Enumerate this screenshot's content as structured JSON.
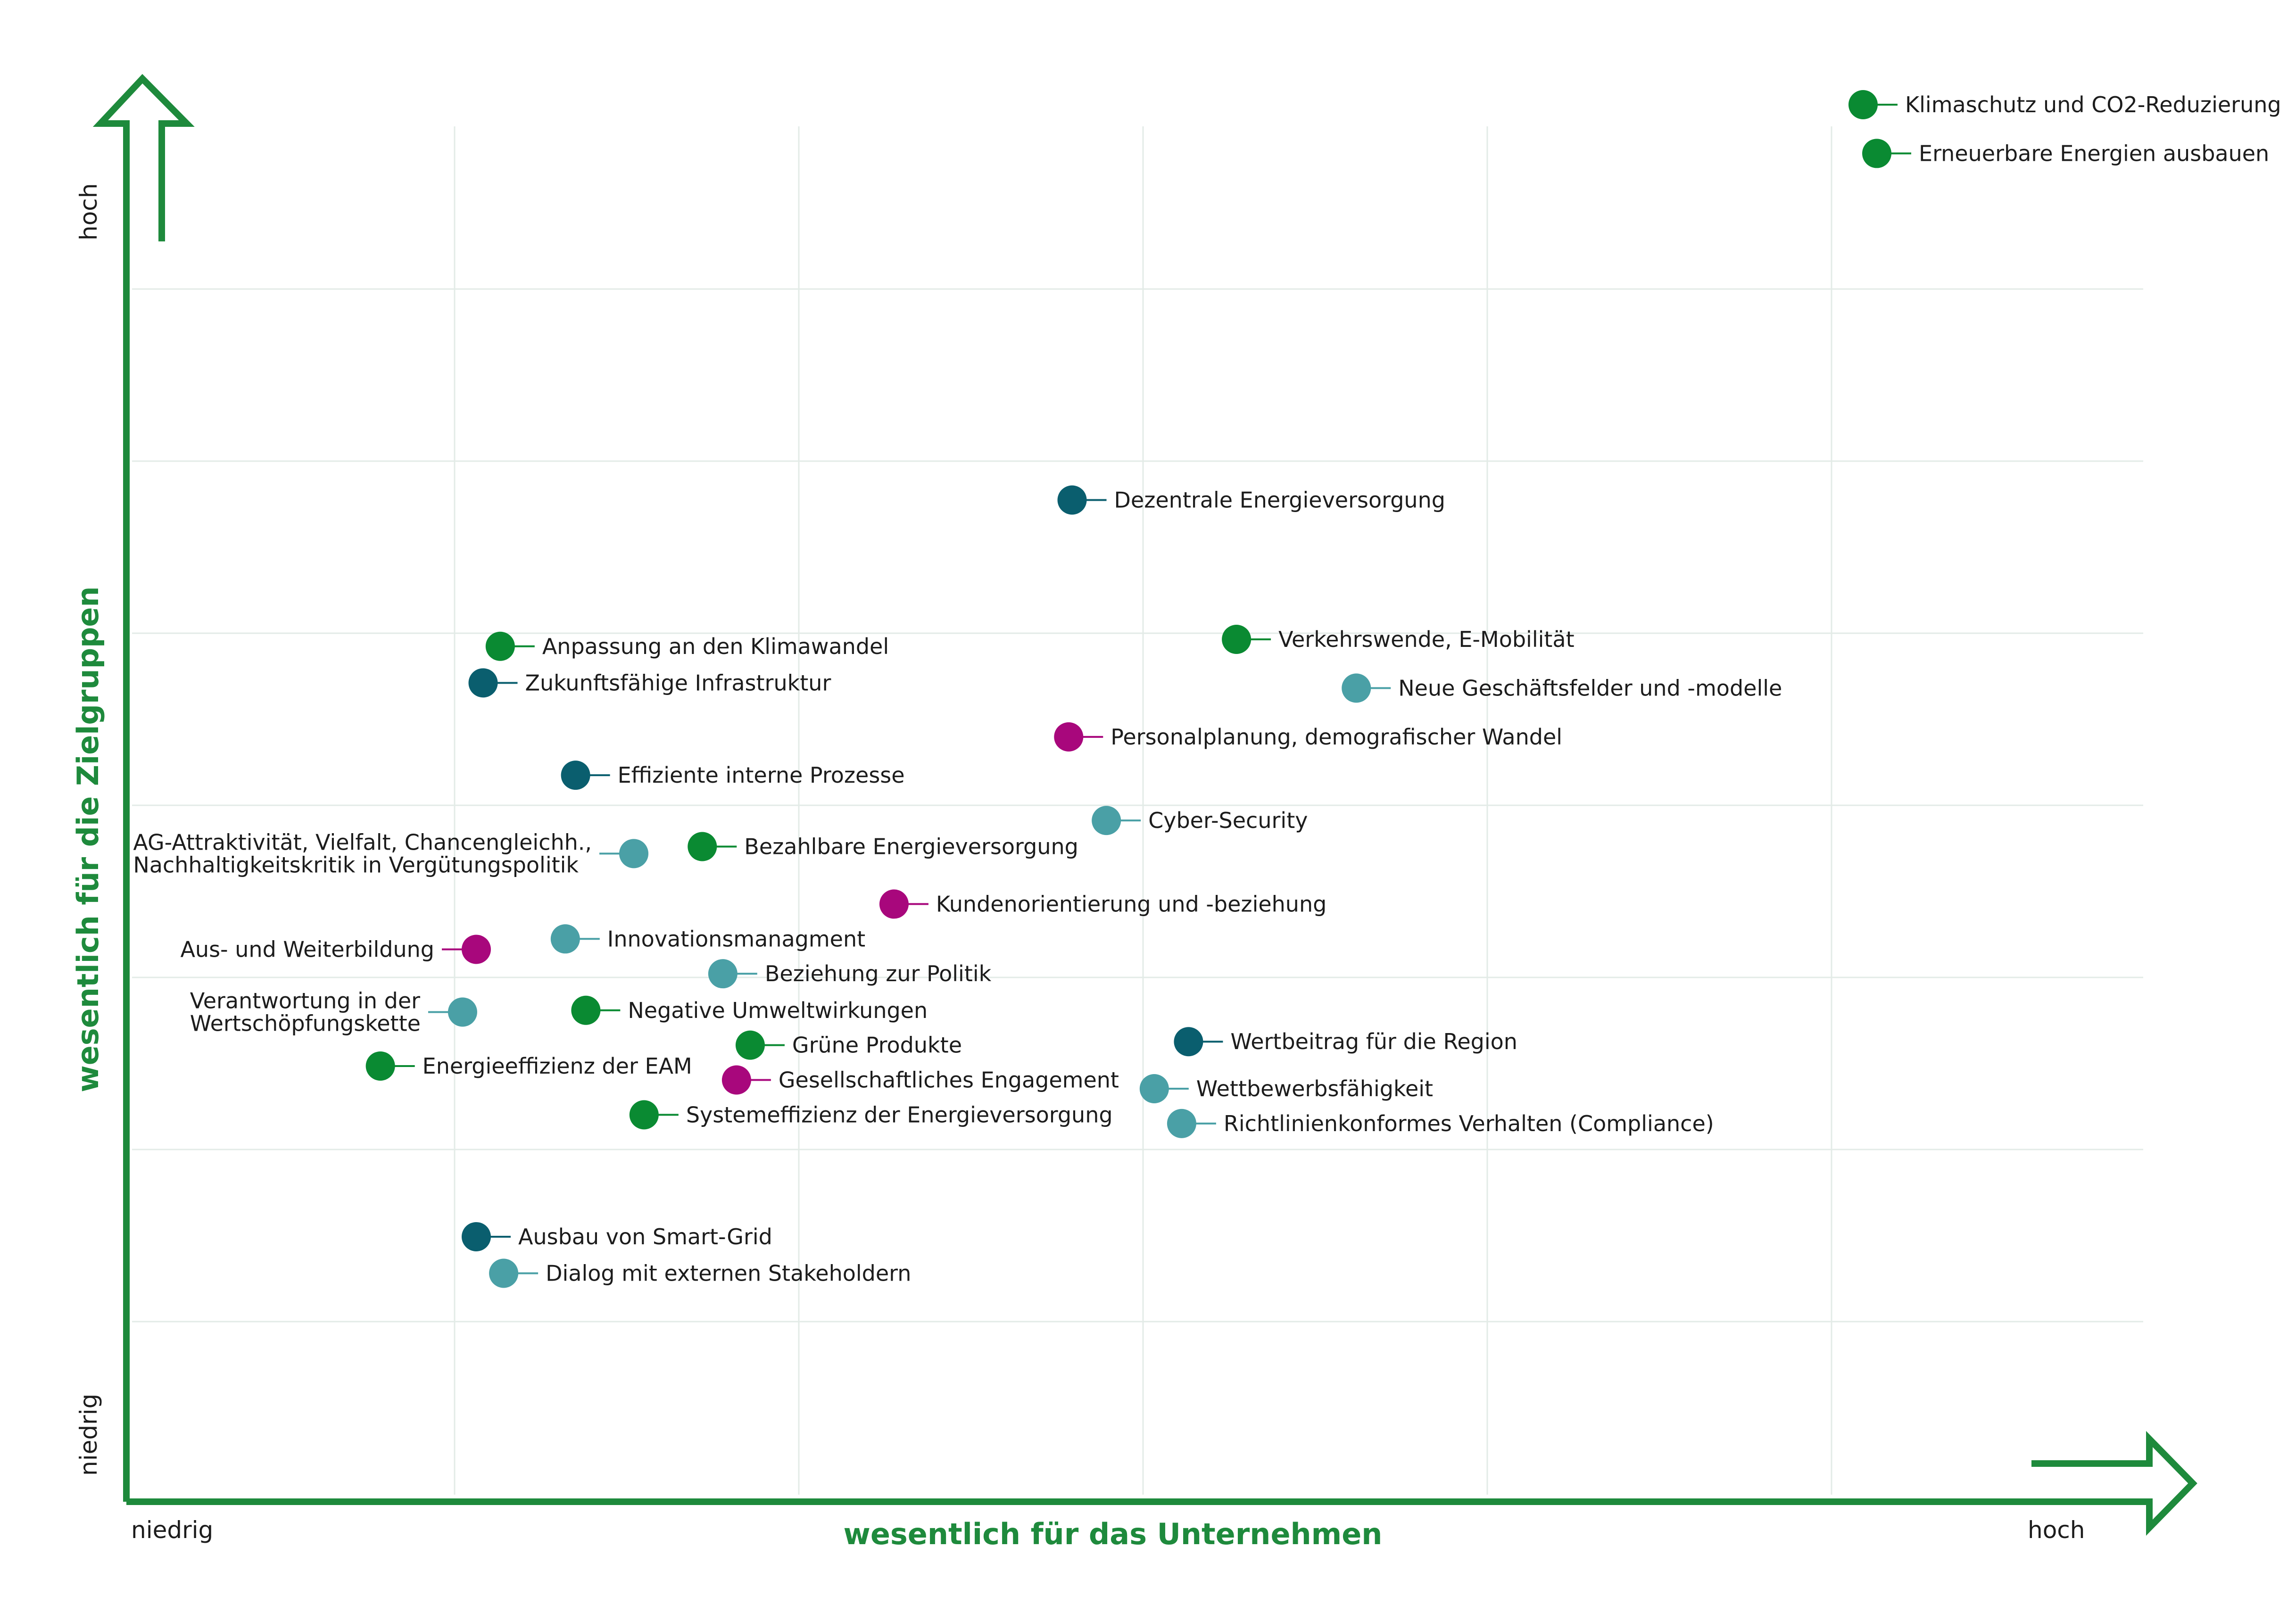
{
  "chart_data": {
    "type": "scatter",
    "title": "",
    "xlabel": "wesentlich für das Unternehmen",
    "ylabel": "wesentlich für die Zielgruppen",
    "x_low_label": "niedrig",
    "x_high_label": "hoch",
    "y_low_label": "niedrig",
    "y_high_label": "hoch",
    "xlim": [
      0,
      6
    ],
    "ylim": [
      0,
      8
    ],
    "grid": true,
    "legend": "none",
    "colors": {
      "green": "#0a8a32",
      "petrol": "#0a5e6e",
      "teal": "#4aa0a6",
      "magenta": "#a8077c",
      "axis": "#1e8a3c",
      "grid": "#e3ebe7"
    },
    "points": [
      {
        "label": "Klimaschutz und CO2-Reduzierung",
        "x": 5.12,
        "y": 8.0,
        "color": "green",
        "side": "right"
      },
      {
        "label": "Erneuerbare Energien ausbauen",
        "x": 5.16,
        "y": 7.72,
        "color": "green",
        "side": "right"
      },
      {
        "label": "Dezentrale Energieversorgung",
        "x": 2.81,
        "y": 5.73,
        "color": "petrol",
        "side": "right"
      },
      {
        "label": "Verkehrswende, E-Mobilität",
        "x": 3.29,
        "y": 4.93,
        "color": "green",
        "side": "right"
      },
      {
        "label": "Neue Geschäftsfelder und -modelle",
        "x": 3.64,
        "y": 4.65,
        "color": "teal",
        "side": "right"
      },
      {
        "label": "Anpassung an den Klimawandel",
        "x": 1.14,
        "y": 4.89,
        "color": "green",
        "side": "right"
      },
      {
        "label": "Zukunftsfähige Infrastruktur",
        "x": 1.09,
        "y": 4.68,
        "color": "petrol",
        "side": "right"
      },
      {
        "label": "Personalplanung, demografischer Wandel",
        "x": 2.8,
        "y": 4.37,
        "color": "magenta",
        "side": "right"
      },
      {
        "label": "Effiziente interne Prozesse",
        "x": 1.36,
        "y": 4.15,
        "color": "petrol",
        "side": "right"
      },
      {
        "label": "Cyber-Security",
        "x": 2.91,
        "y": 3.89,
        "color": "teal",
        "side": "right"
      },
      {
        "label": [
          "AG-Attraktivität, Vielfalt, Chancengleichh.,",
          "Nachhaltigkeitskritik in Vergütungspolitik"
        ],
        "x": 1.53,
        "y": 3.7,
        "color": "teal",
        "side": "left"
      },
      {
        "label": "Bezahlbare Energieversorgung",
        "x": 1.73,
        "y": 3.74,
        "color": "green",
        "side": "right"
      },
      {
        "label": "Kundenorientierung und -beziehung",
        "x": 2.29,
        "y": 3.41,
        "color": "magenta",
        "side": "right"
      },
      {
        "label": "Innovationsmanagment",
        "x": 1.33,
        "y": 3.21,
        "color": "teal",
        "side": "right"
      },
      {
        "label": "Aus- und Weiterbildung",
        "x": 1.07,
        "y": 3.15,
        "color": "magenta",
        "side": "left"
      },
      {
        "label": "Beziehung zur Politik",
        "x": 1.79,
        "y": 3.01,
        "color": "teal",
        "side": "right"
      },
      {
        "label": [
          "Verantwortung in der",
          "Wertschöpfungskette"
        ],
        "x": 1.03,
        "y": 2.79,
        "color": "teal",
        "side": "left"
      },
      {
        "label": "Negative Umweltwirkungen",
        "x": 1.39,
        "y": 2.8,
        "color": "green",
        "side": "right"
      },
      {
        "label": "Grüne Produkte",
        "x": 1.87,
        "y": 2.6,
        "color": "green",
        "side": "right"
      },
      {
        "label": "Wertbeitrag für die Region",
        "x": 3.15,
        "y": 2.62,
        "color": "petrol",
        "side": "right"
      },
      {
        "label": "Energieeffizienz der EAM",
        "x": 0.79,
        "y": 2.48,
        "color": "green",
        "side": "right"
      },
      {
        "label": "Gesellschaftliches Engagement",
        "x": 1.83,
        "y": 2.4,
        "color": "magenta",
        "side": "right"
      },
      {
        "label": "Wettbewerbsfähigkeit",
        "x": 3.05,
        "y": 2.35,
        "color": "teal",
        "side": "right"
      },
      {
        "label": "Systemeffizienz der Energieversorgung",
        "x": 1.56,
        "y": 2.2,
        "color": "green",
        "side": "right"
      },
      {
        "label": "Richtlinienkonformes Verhalten (Compliance)",
        "x": 3.13,
        "y": 2.15,
        "color": "teal",
        "side": "right"
      },
      {
        "label": "Ausbau von Smart-Grid",
        "x": 1.07,
        "y": 1.5,
        "color": "petrol",
        "side": "right"
      },
      {
        "label": "Dialog mit externen Stakeholdern",
        "x": 1.15,
        "y": 1.29,
        "color": "teal",
        "side": "right"
      }
    ]
  }
}
